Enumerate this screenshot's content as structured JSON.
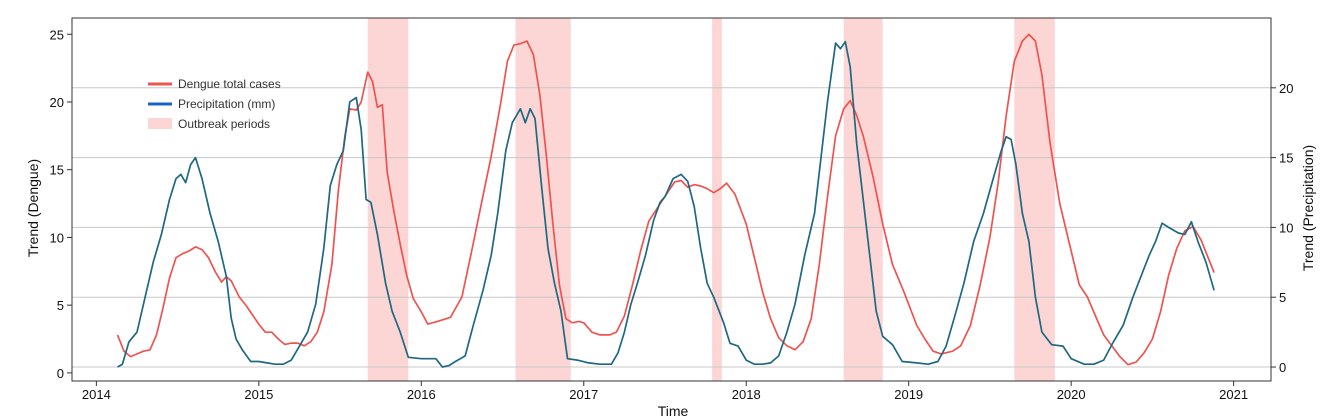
{
  "chart_data": {
    "type": "line",
    "title": "",
    "xlabel": "Time",
    "ylabel_left": "Trend (Dengue)",
    "ylabel_right": "Trend (Precipitation)",
    "xlim": [
      2013.85,
      2021.23
    ],
    "ylim_left": [
      -0.6,
      26.2
    ],
    "ylim_right": [
      -1.0,
      25.0
    ],
    "x_ticks": [
      2014,
      2015,
      2016,
      2017,
      2018,
      2019,
      2020,
      2021
    ],
    "y_left_ticks": [
      0,
      5,
      10,
      15,
      20,
      25
    ],
    "y_right_ticks": [
      0,
      5,
      10,
      15,
      20
    ],
    "grid": "horizontal lines at right-axis ticks",
    "legend_position": "upper-left",
    "legend": [
      "Dengue total cases",
      "Precipitation (mm)",
      "Outbreak periods"
    ],
    "colors": {
      "dengue": "#ef5350",
      "precip": "#1f6882",
      "outbreak": "#fbd6d5",
      "legend_precip": "#1565c0",
      "grid": "#c8c8c8"
    },
    "outbreak_periods": [
      [
        2015.67,
        2015.92
      ],
      [
        2016.58,
        2016.92
      ],
      [
        2017.79,
        2017.85
      ],
      [
        2018.6,
        2018.84
      ],
      [
        2019.65,
        2019.9
      ]
    ],
    "series": [
      {
        "name": "Dengue total cases",
        "axis": "left",
        "points": [
          [
            2014.13,
            2.8
          ],
          [
            2014.17,
            1.6
          ],
          [
            2014.21,
            1.2
          ],
          [
            2014.25,
            1.4
          ],
          [
            2014.29,
            1.6
          ],
          [
            2014.33,
            1.7
          ],
          [
            2014.37,
            2.8
          ],
          [
            2014.41,
            4.8
          ],
          [
            2014.45,
            7.0
          ],
          [
            2014.49,
            8.5
          ],
          [
            2014.53,
            8.8
          ],
          [
            2014.57,
            9.0
          ],
          [
            2014.61,
            9.3
          ],
          [
            2014.65,
            9.1
          ],
          [
            2014.69,
            8.5
          ],
          [
            2014.73,
            7.5
          ],
          [
            2014.77,
            6.7
          ],
          [
            2014.8,
            7.1
          ],
          [
            2014.83,
            6.8
          ],
          [
            2014.88,
            5.6
          ],
          [
            2014.92,
            5.0
          ],
          [
            2014.96,
            4.3
          ],
          [
            2015.0,
            3.6
          ],
          [
            2015.04,
            3.0
          ],
          [
            2015.08,
            3.0
          ],
          [
            2015.12,
            2.5
          ],
          [
            2015.16,
            2.1
          ],
          [
            2015.2,
            2.2
          ],
          [
            2015.24,
            2.2
          ],
          [
            2015.28,
            2.0
          ],
          [
            2015.32,
            2.3
          ],
          [
            2015.36,
            3.0
          ],
          [
            2015.4,
            4.5
          ],
          [
            2015.45,
            8.0
          ],
          [
            2015.49,
            13.5
          ],
          [
            2015.53,
            17.5
          ],
          [
            2015.56,
            19.5
          ],
          [
            2015.6,
            19.4
          ],
          [
            2015.63,
            20.0
          ],
          [
            2015.67,
            22.2
          ],
          [
            2015.7,
            21.5
          ],
          [
            2015.73,
            19.6
          ],
          [
            2015.76,
            19.8
          ],
          [
            2015.79,
            14.8
          ],
          [
            2015.83,
            12.0
          ],
          [
            2015.87,
            9.5
          ],
          [
            2015.91,
            7.2
          ],
          [
            2015.95,
            5.5
          ],
          [
            2016.0,
            4.5
          ],
          [
            2016.04,
            3.6
          ],
          [
            2016.1,
            3.8
          ],
          [
            2016.18,
            4.1
          ],
          [
            2016.25,
            5.6
          ],
          [
            2016.31,
            9.0
          ],
          [
            2016.37,
            12.5
          ],
          [
            2016.43,
            16.0
          ],
          [
            2016.49,
            20.0
          ],
          [
            2016.53,
            23.0
          ],
          [
            2016.57,
            24.2
          ],
          [
            2016.61,
            24.3
          ],
          [
            2016.65,
            24.5
          ],
          [
            2016.69,
            23.5
          ],
          [
            2016.73,
            20.5
          ],
          [
            2016.77,
            16.0
          ],
          [
            2016.81,
            11.0
          ],
          [
            2016.85,
            6.5
          ],
          [
            2016.89,
            4.0
          ],
          [
            2016.93,
            3.7
          ],
          [
            2016.97,
            3.8
          ],
          [
            2017.0,
            3.7
          ],
          [
            2017.05,
            3.0
          ],
          [
            2017.1,
            2.8
          ],
          [
            2017.16,
            2.8
          ],
          [
            2017.2,
            3.0
          ],
          [
            2017.25,
            4.2
          ],
          [
            2017.3,
            6.5
          ],
          [
            2017.35,
            9.0
          ],
          [
            2017.4,
            11.2
          ],
          [
            2017.46,
            12.3
          ],
          [
            2017.52,
            13.4
          ],
          [
            2017.56,
            14.1
          ],
          [
            2017.6,
            14.2
          ],
          [
            2017.64,
            13.7
          ],
          [
            2017.68,
            13.9
          ],
          [
            2017.72,
            13.8
          ],
          [
            2017.76,
            13.6
          ],
          [
            2017.8,
            13.3
          ],
          [
            2017.84,
            13.6
          ],
          [
            2017.88,
            14.0
          ],
          [
            2017.93,
            13.2
          ],
          [
            2018.0,
            11.0
          ],
          [
            2018.05,
            8.5
          ],
          [
            2018.1,
            6.0
          ],
          [
            2018.15,
            4.0
          ],
          [
            2018.2,
            2.6
          ],
          [
            2018.25,
            2.0
          ],
          [
            2018.3,
            1.7
          ],
          [
            2018.35,
            2.3
          ],
          [
            2018.4,
            4.0
          ],
          [
            2018.45,
            8.0
          ],
          [
            2018.5,
            13.0
          ],
          [
            2018.55,
            17.5
          ],
          [
            2018.6,
            19.5
          ],
          [
            2018.64,
            20.1
          ],
          [
            2018.68,
            19.0
          ],
          [
            2018.72,
            17.5
          ],
          [
            2018.78,
            14.5
          ],
          [
            2018.84,
            11.0
          ],
          [
            2018.9,
            8.0
          ],
          [
            2018.97,
            6.0
          ],
          [
            2019.05,
            3.5
          ],
          [
            2019.1,
            2.5
          ],
          [
            2019.15,
            1.6
          ],
          [
            2019.2,
            1.4
          ],
          [
            2019.27,
            1.6
          ],
          [
            2019.32,
            2.0
          ],
          [
            2019.38,
            3.5
          ],
          [
            2019.44,
            6.5
          ],
          [
            2019.5,
            10.0
          ],
          [
            2019.55,
            14.0
          ],
          [
            2019.6,
            19.0
          ],
          [
            2019.65,
            23.0
          ],
          [
            2019.7,
            24.5
          ],
          [
            2019.74,
            25.0
          ],
          [
            2019.78,
            24.5
          ],
          [
            2019.82,
            22.0
          ],
          [
            2019.87,
            17.0
          ],
          [
            2019.93,
            12.5
          ],
          [
            2019.98,
            10.0
          ],
          [
            2020.05,
            6.5
          ],
          [
            2020.1,
            5.6
          ],
          [
            2020.15,
            4.2
          ],
          [
            2020.2,
            2.8
          ],
          [
            2020.25,
            2.0
          ],
          [
            2020.3,
            1.2
          ],
          [
            2020.35,
            0.6
          ],
          [
            2020.4,
            0.8
          ],
          [
            2020.45,
            1.5
          ],
          [
            2020.5,
            2.5
          ],
          [
            2020.55,
            4.5
          ],
          [
            2020.6,
            7.2
          ],
          [
            2020.65,
            9.2
          ],
          [
            2020.7,
            10.5
          ],
          [
            2020.75,
            10.8
          ],
          [
            2020.8,
            9.8
          ],
          [
            2020.88,
            7.4
          ]
        ]
      },
      {
        "name": "Precipitation (mm)",
        "axis": "right",
        "points": [
          [
            2014.13,
            0.0
          ],
          [
            2014.16,
            0.2
          ],
          [
            2014.2,
            1.8
          ],
          [
            2014.25,
            2.5
          ],
          [
            2014.3,
            5.0
          ],
          [
            2014.35,
            7.5
          ],
          [
            2014.4,
            9.5
          ],
          [
            2014.45,
            12.0
          ],
          [
            2014.49,
            13.5
          ],
          [
            2014.52,
            13.8
          ],
          [
            2014.55,
            13.2
          ],
          [
            2014.58,
            14.5
          ],
          [
            2014.61,
            15.0
          ],
          [
            2014.65,
            13.5
          ],
          [
            2014.7,
            11.0
          ],
          [
            2014.75,
            9.0
          ],
          [
            2014.8,
            6.5
          ],
          [
            2014.83,
            3.5
          ],
          [
            2014.86,
            2.0
          ],
          [
            2014.9,
            1.2
          ],
          [
            2014.95,
            0.4
          ],
          [
            2015.0,
            0.4
          ],
          [
            2015.05,
            0.3
          ],
          [
            2015.1,
            0.2
          ],
          [
            2015.15,
            0.2
          ],
          [
            2015.2,
            0.5
          ],
          [
            2015.25,
            1.5
          ],
          [
            2015.3,
            2.5
          ],
          [
            2015.35,
            4.5
          ],
          [
            2015.4,
            8.5
          ],
          [
            2015.44,
            13.0
          ],
          [
            2015.48,
            14.5
          ],
          [
            2015.52,
            15.5
          ],
          [
            2015.56,
            19.0
          ],
          [
            2015.6,
            19.3
          ],
          [
            2015.63,
            17.0
          ],
          [
            2015.66,
            12.0
          ],
          [
            2015.69,
            11.8
          ],
          [
            2015.73,
            9.5
          ],
          [
            2015.78,
            6.0
          ],
          [
            2015.82,
            4.0
          ],
          [
            2015.87,
            2.5
          ],
          [
            2015.92,
            0.7
          ],
          [
            2016.0,
            0.6
          ],
          [
            2016.05,
            0.6
          ],
          [
            2016.09,
            0.6
          ],
          [
            2016.13,
            0.0
          ],
          [
            2016.17,
            0.1
          ],
          [
            2016.21,
            0.4
          ],
          [
            2016.27,
            0.8
          ],
          [
            2016.32,
            3.0
          ],
          [
            2016.38,
            5.5
          ],
          [
            2016.43,
            8.0
          ],
          [
            2016.47,
            11.0
          ],
          [
            2016.52,
            15.5
          ],
          [
            2016.56,
            17.5
          ],
          [
            2016.61,
            18.5
          ],
          [
            2016.64,
            17.5
          ],
          [
            2016.67,
            18.5
          ],
          [
            2016.7,
            17.8
          ],
          [
            2016.74,
            13.0
          ],
          [
            2016.78,
            8.5
          ],
          [
            2016.82,
            6.0
          ],
          [
            2016.86,
            4.0
          ],
          [
            2016.9,
            0.6
          ],
          [
            2016.96,
            0.5
          ],
          [
            2017.03,
            0.3
          ],
          [
            2017.1,
            0.2
          ],
          [
            2017.17,
            0.2
          ],
          [
            2017.21,
            1.0
          ],
          [
            2017.25,
            2.5
          ],
          [
            2017.29,
            4.5
          ],
          [
            2017.33,
            6.0
          ],
          [
            2017.38,
            8.0
          ],
          [
            2017.43,
            10.5
          ],
          [
            2017.47,
            11.8
          ],
          [
            2017.5,
            12.2
          ],
          [
            2017.55,
            13.5
          ],
          [
            2017.6,
            13.8
          ],
          [
            2017.64,
            13.3
          ],
          [
            2017.68,
            11.5
          ],
          [
            2017.72,
            8.5
          ],
          [
            2017.76,
            6.0
          ],
          [
            2017.8,
            5.0
          ],
          [
            2017.86,
            3.2
          ],
          [
            2017.9,
            1.7
          ],
          [
            2017.95,
            1.5
          ],
          [
            2018.0,
            0.5
          ],
          [
            2018.05,
            0.2
          ],
          [
            2018.1,
            0.2
          ],
          [
            2018.15,
            0.3
          ],
          [
            2018.2,
            0.8
          ],
          [
            2018.25,
            2.5
          ],
          [
            2018.3,
            4.5
          ],
          [
            2018.36,
            8.0
          ],
          [
            2018.42,
            11.0
          ],
          [
            2018.46,
            15.0
          ],
          [
            2018.5,
            19.0
          ],
          [
            2018.53,
            21.5
          ],
          [
            2018.55,
            23.2
          ],
          [
            2018.58,
            22.8
          ],
          [
            2018.61,
            23.3
          ],
          [
            2018.64,
            21.5
          ],
          [
            2018.68,
            16.0
          ],
          [
            2018.72,
            12.0
          ],
          [
            2018.76,
            8.0
          ],
          [
            2018.8,
            4.0
          ],
          [
            2018.84,
            2.2
          ],
          [
            2018.9,
            1.6
          ],
          [
            2018.96,
            0.4
          ],
          [
            2019.05,
            0.3
          ],
          [
            2019.12,
            0.2
          ],
          [
            2019.18,
            0.4
          ],
          [
            2019.23,
            1.5
          ],
          [
            2019.28,
            3.5
          ],
          [
            2019.34,
            6.0
          ],
          [
            2019.4,
            9.0
          ],
          [
            2019.46,
            11.0
          ],
          [
            2019.52,
            13.5
          ],
          [
            2019.57,
            15.5
          ],
          [
            2019.6,
            16.5
          ],
          [
            2019.63,
            16.3
          ],
          [
            2019.66,
            14.5
          ],
          [
            2019.7,
            11.0
          ],
          [
            2019.74,
            9.0
          ],
          [
            2019.78,
            5.0
          ],
          [
            2019.82,
            2.5
          ],
          [
            2019.88,
            1.6
          ],
          [
            2019.95,
            1.5
          ],
          [
            2020.0,
            0.6
          ],
          [
            2020.08,
            0.2
          ],
          [
            2020.14,
            0.2
          ],
          [
            2020.2,
            0.5
          ],
          [
            2020.26,
            1.8
          ],
          [
            2020.32,
            3.0
          ],
          [
            2020.38,
            5.0
          ],
          [
            2020.43,
            6.5
          ],
          [
            2020.48,
            8.0
          ],
          [
            2020.52,
            9.0
          ],
          [
            2020.56,
            10.3
          ],
          [
            2020.6,
            10.0
          ],
          [
            2020.66,
            9.6
          ],
          [
            2020.7,
            9.5
          ],
          [
            2020.74,
            10.4
          ],
          [
            2020.78,
            9.0
          ],
          [
            2020.83,
            7.5
          ],
          [
            2020.88,
            5.5
          ]
        ]
      }
    ]
  }
}
